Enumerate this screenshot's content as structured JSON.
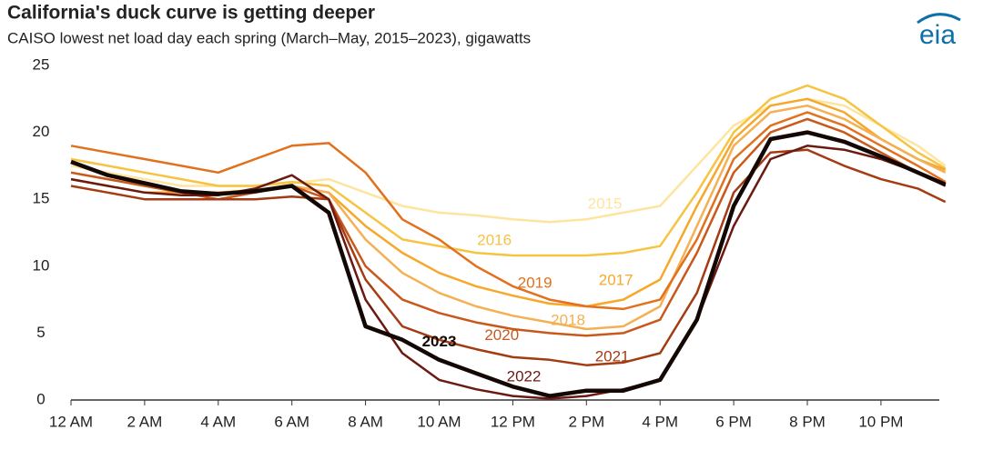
{
  "logo": "eia",
  "chart_data": {
    "type": "line",
    "title": "California's duck curve is getting deeper",
    "subtitle": "CAISO lowest net load day each spring (March–May, 2015–2023), gigawatts",
    "x": [
      0,
      1,
      2,
      3,
      4,
      5,
      6,
      7,
      8,
      9,
      10,
      11,
      12,
      13,
      14,
      15,
      16,
      17,
      18,
      19,
      20,
      21,
      22,
      23,
      23.75
    ],
    "xlim": [
      0,
      24
    ],
    "xticks": [
      {
        "value": 0,
        "label": "12 AM"
      },
      {
        "value": 2,
        "label": "2 AM"
      },
      {
        "value": 4,
        "label": "4 AM"
      },
      {
        "value": 6,
        "label": "6 AM"
      },
      {
        "value": 8,
        "label": "8 AM"
      },
      {
        "value": 10,
        "label": "10 AM"
      },
      {
        "value": 12,
        "label": "12 PM"
      },
      {
        "value": 14,
        "label": "2 PM"
      },
      {
        "value": 16,
        "label": "4 PM"
      },
      {
        "value": 18,
        "label": "6 PM"
      },
      {
        "value": 20,
        "label": "8 PM"
      },
      {
        "value": 22,
        "label": "10 PM"
      }
    ],
    "ylim": [
      0,
      25
    ],
    "yticks": [
      0,
      5,
      10,
      15,
      20,
      25
    ],
    "grid": false,
    "series": [
      {
        "name": "2015",
        "color": "#fde5a0",
        "values": [
          17.5,
          17,
          16.5,
          16,
          16,
          16,
          16.2,
          16.5,
          15.5,
          14.5,
          14,
          13.8,
          13.5,
          13.3,
          13.5,
          14,
          14.5,
          17.5,
          20.5,
          22,
          22.5,
          22,
          20.5,
          19,
          17.5
        ]
      },
      {
        "name": "2016",
        "color": "#f6c343",
        "values": [
          18,
          17.5,
          17,
          16.5,
          16,
          16,
          16.3,
          16,
          14,
          12,
          11.5,
          11,
          10.8,
          10.8,
          10.8,
          11,
          11.5,
          15.5,
          20,
          22.5,
          23.5,
          22.5,
          20.5,
          18.5,
          17.3
        ]
      },
      {
        "name": "2017",
        "color": "#f7a72a",
        "values": [
          16.5,
          16,
          15.5,
          15.5,
          15.5,
          15.7,
          16,
          15.5,
          13,
          11,
          9.5,
          8.5,
          7.8,
          7.2,
          7,
          7.5,
          9,
          14.5,
          19.5,
          22,
          22.5,
          21.5,
          19.5,
          18,
          17.2
        ]
      },
      {
        "name": "2018",
        "color": "#f4b052",
        "values": [
          17,
          16.5,
          16,
          15.5,
          15.5,
          15.5,
          16,
          15.5,
          12,
          9.5,
          8,
          7,
          6.3,
          5.8,
          5.3,
          5.5,
          7,
          13,
          19,
          21.5,
          22,
          21,
          19.5,
          18,
          17
        ]
      },
      {
        "name": "2019",
        "color": "#e2711e",
        "values": [
          19,
          18.5,
          18,
          17.5,
          17,
          18,
          19,
          19.2,
          17,
          13.5,
          12,
          10,
          8.5,
          7.5,
          7,
          6.8,
          7.5,
          12,
          18,
          20.5,
          21.5,
          20.5,
          19,
          17.5,
          16.3
        ]
      },
      {
        "name": "2020",
        "color": "#c9581c",
        "values": [
          17,
          16.5,
          16,
          15.5,
          15,
          15.5,
          16,
          15,
          10,
          7.5,
          6.5,
          5.8,
          5.3,
          5,
          4.8,
          5,
          6,
          11,
          17,
          20,
          21,
          20,
          18.5,
          17,
          16
        ]
      },
      {
        "name": "2021",
        "color": "#a33c13",
        "values": [
          16,
          15.5,
          15,
          15,
          15,
          15,
          15.2,
          15,
          9,
          5.5,
          4.5,
          3.8,
          3.2,
          3,
          2.6,
          2.8,
          3.5,
          8,
          15.5,
          18.5,
          18.7,
          17.5,
          16.5,
          15.8,
          14.8
        ]
      },
      {
        "name": "2022",
        "color": "#6b1a12",
        "values": [
          16.5,
          16,
          15.5,
          15.3,
          15.3,
          15.8,
          16.8,
          15,
          7.5,
          3.5,
          1.5,
          0.8,
          0.3,
          0.1,
          0.3,
          0.8,
          1.5,
          6,
          13,
          18,
          19,
          18.7,
          18,
          17,
          16
        ]
      },
      {
        "name": "2023",
        "color": "#140805",
        "values": [
          17.8,
          16.8,
          16.2,
          15.6,
          15.4,
          15.6,
          16,
          14,
          5.5,
          4.5,
          3,
          2,
          1,
          0.3,
          0.7,
          0.7,
          1.5,
          6,
          14.5,
          19.5,
          20,
          19.3,
          18.2,
          17,
          16.1
        ]
      }
    ]
  }
}
